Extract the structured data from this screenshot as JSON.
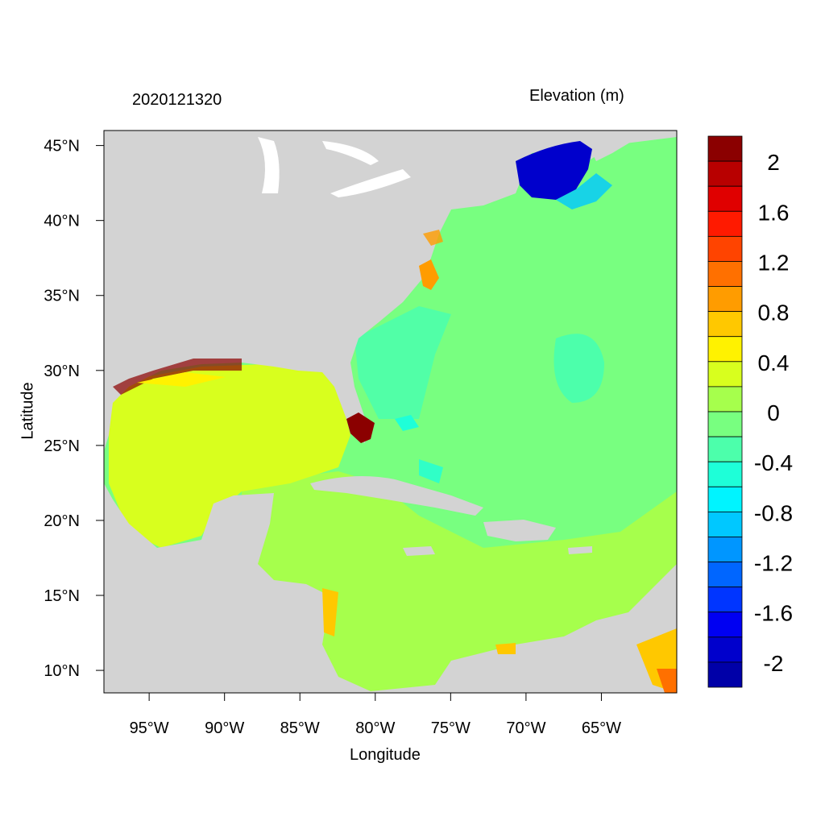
{
  "header": {
    "date_label": "2020121320",
    "title": "Elevation (m)"
  },
  "axes": {
    "xlabel": "Longitude",
    "ylabel": "Latitude",
    "x_ticks": [
      {
        "value": -95,
        "label": "95°W"
      },
      {
        "value": -90,
        "label": "90°W"
      },
      {
        "value": -85,
        "label": "85°W"
      },
      {
        "value": -80,
        "label": "80°W"
      },
      {
        "value": -75,
        "label": "75°W"
      },
      {
        "value": -70,
        "label": "70°W"
      },
      {
        "value": -65,
        "label": "65°W"
      }
    ],
    "y_ticks": [
      {
        "value": 45,
        "label": "45°N"
      },
      {
        "value": 40,
        "label": "40°N"
      },
      {
        "value": 35,
        "label": "35°N"
      },
      {
        "value": 30,
        "label": "30°N"
      },
      {
        "value": 25,
        "label": "25°N"
      },
      {
        "value": 20,
        "label": "20°N"
      },
      {
        "value": 15,
        "label": "15°N"
      },
      {
        "value": 10,
        "label": "10°N"
      }
    ],
    "xlim": [
      -98,
      -60
    ],
    "ylim": [
      8.5,
      46
    ]
  },
  "colorbar": {
    "colors": [
      "#8b0000",
      "#b80000",
      "#e00000",
      "#ff1a00",
      "#ff4400",
      "#ff7000",
      "#ff9c00",
      "#ffc800",
      "#fff200",
      "#d8ff1e",
      "#a6ff4c",
      "#78ff80",
      "#4cffab",
      "#1effd8",
      "#00f4ff",
      "#00c8ff",
      "#0096ff",
      "#0066ff",
      "#0035ff",
      "#0000f2",
      "#0000cc",
      "#0000a8"
    ],
    "labels": [
      "2",
      "1.6",
      "1.2",
      "0.8",
      "0.4",
      "0",
      "-0.4",
      "-0.8",
      "-1.2",
      "-1.6",
      "-2"
    ]
  },
  "map": {
    "land_color": "#d3d3d3",
    "ocean_base_color": "#78ff80",
    "gulf_color": "#d8ff1e",
    "caribbean_color": "#a6ff4c",
    "surge_high_color": "#8b0000",
    "surge_low_color": "#0000cc"
  }
}
